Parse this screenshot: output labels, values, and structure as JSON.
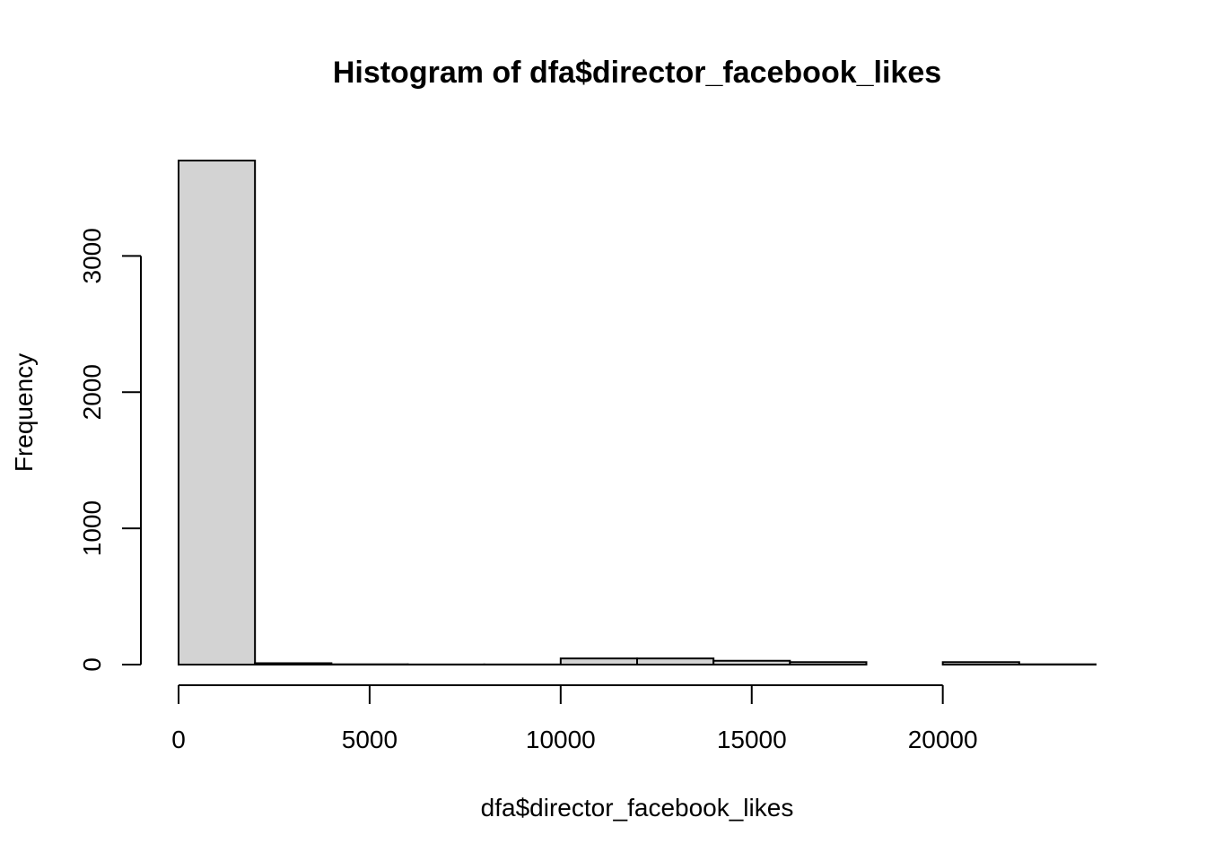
{
  "chart_data": {
    "type": "bar",
    "title": "Histogram of dfa$director_facebook_likes",
    "xlabel": "dfa$director_facebook_likes",
    "ylabel": "Frequency",
    "bins": [
      {
        "start": 0,
        "end": 2000,
        "count": 3700
      },
      {
        "start": 2000,
        "end": 4000,
        "count": 10
      },
      {
        "start": 4000,
        "end": 6000,
        "count": 2
      },
      {
        "start": 6000,
        "end": 8000,
        "count": 1
      },
      {
        "start": 8000,
        "end": 10000,
        "count": 1
      },
      {
        "start": 10000,
        "end": 12000,
        "count": 45
      },
      {
        "start": 12000,
        "end": 14000,
        "count": 45
      },
      {
        "start": 14000,
        "end": 16000,
        "count": 28
      },
      {
        "start": 16000,
        "end": 18000,
        "count": 18
      },
      {
        "start": 18000,
        "end": 20000,
        "count": 0
      },
      {
        "start": 20000,
        "end": 22000,
        "count": 18
      },
      {
        "start": 22000,
        "end": 24000,
        "count": 2
      }
    ],
    "xlim": [
      0,
      24000
    ],
    "ylim": [
      0,
      3700
    ],
    "x_ticks": [
      0,
      5000,
      10000,
      15000,
      20000
    ],
    "y_ticks": [
      0,
      1000,
      2000,
      3000
    ],
    "x_tick_labels": [
      "0",
      "5000",
      "10000",
      "15000",
      "20000"
    ],
    "y_tick_labels": [
      "0",
      "1000",
      "2000",
      "3000"
    ],
    "grid": false,
    "legend": "none",
    "colors": {
      "bar_fill": "#d3d3d3",
      "bar_stroke": "#000000",
      "axis": "#000000"
    }
  }
}
